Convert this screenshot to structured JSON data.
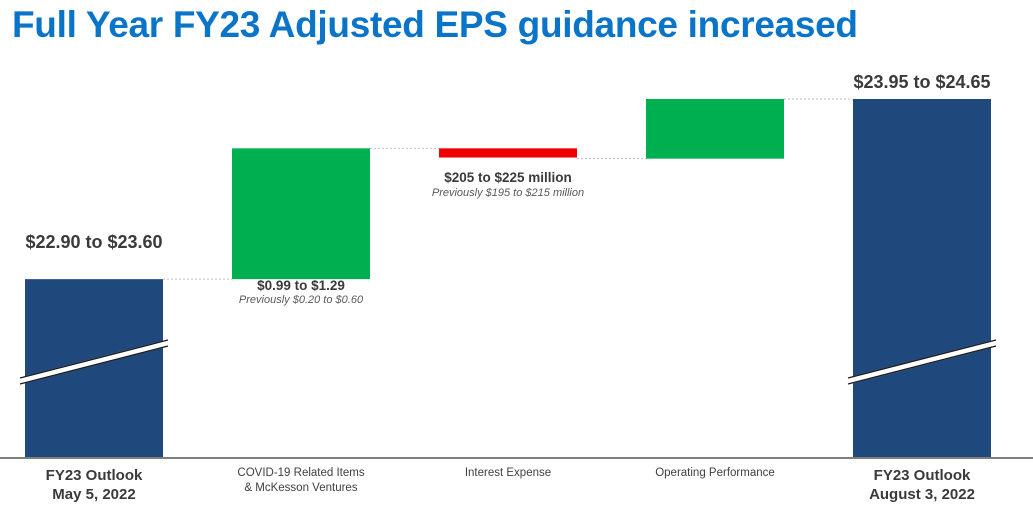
{
  "title": "Full Year FY23 Adjusted EPS guidance increased",
  "colors": {
    "title": "#0a74c9",
    "total_bar": "#1f497d",
    "increase": "#00b050",
    "decrease": "#ee0000",
    "connector": "#bfbfbf",
    "axis": "#7f7f7f"
  },
  "chart_data": {
    "type": "bar",
    "subtype": "waterfall",
    "axis_break": true,
    "categories": [
      [
        "FY23 Outlook",
        "May 5, 2022"
      ],
      [
        "COVID-19 Related Items",
        "& McKesson Ventures"
      ],
      [
        "Interest Expense"
      ],
      [
        "Operating Performance"
      ],
      [
        "FY23 Outlook",
        "August 3, 2022"
      ]
    ],
    "bars": [
      {
        "kind": "total",
        "low": 22.9,
        "high": 23.6,
        "label": "$22.90 to $23.60",
        "note": ""
      },
      {
        "kind": "increase",
        "low": 0.99,
        "high": 1.29,
        "label": "$0.99 to $1.29",
        "note": "Previously $0.20 to $0.60"
      },
      {
        "kind": "decrease",
        "label": "$205 to $225 million",
        "note": "Previously $195 to $215 million"
      },
      {
        "kind": "increase",
        "label": "",
        "note": ""
      },
      {
        "kind": "total",
        "low": 23.95,
        "high": 24.65,
        "label": "$23.95 to $24.65",
        "note": ""
      }
    ],
    "waterfall_levels_usd": [
      23.25,
      24.39,
      24.31,
      24.3,
      24.82,
      24.3
    ],
    "scale": {
      "baseline": 21.7,
      "top": 24.82
    },
    "grid": false,
    "legend": "none"
  }
}
